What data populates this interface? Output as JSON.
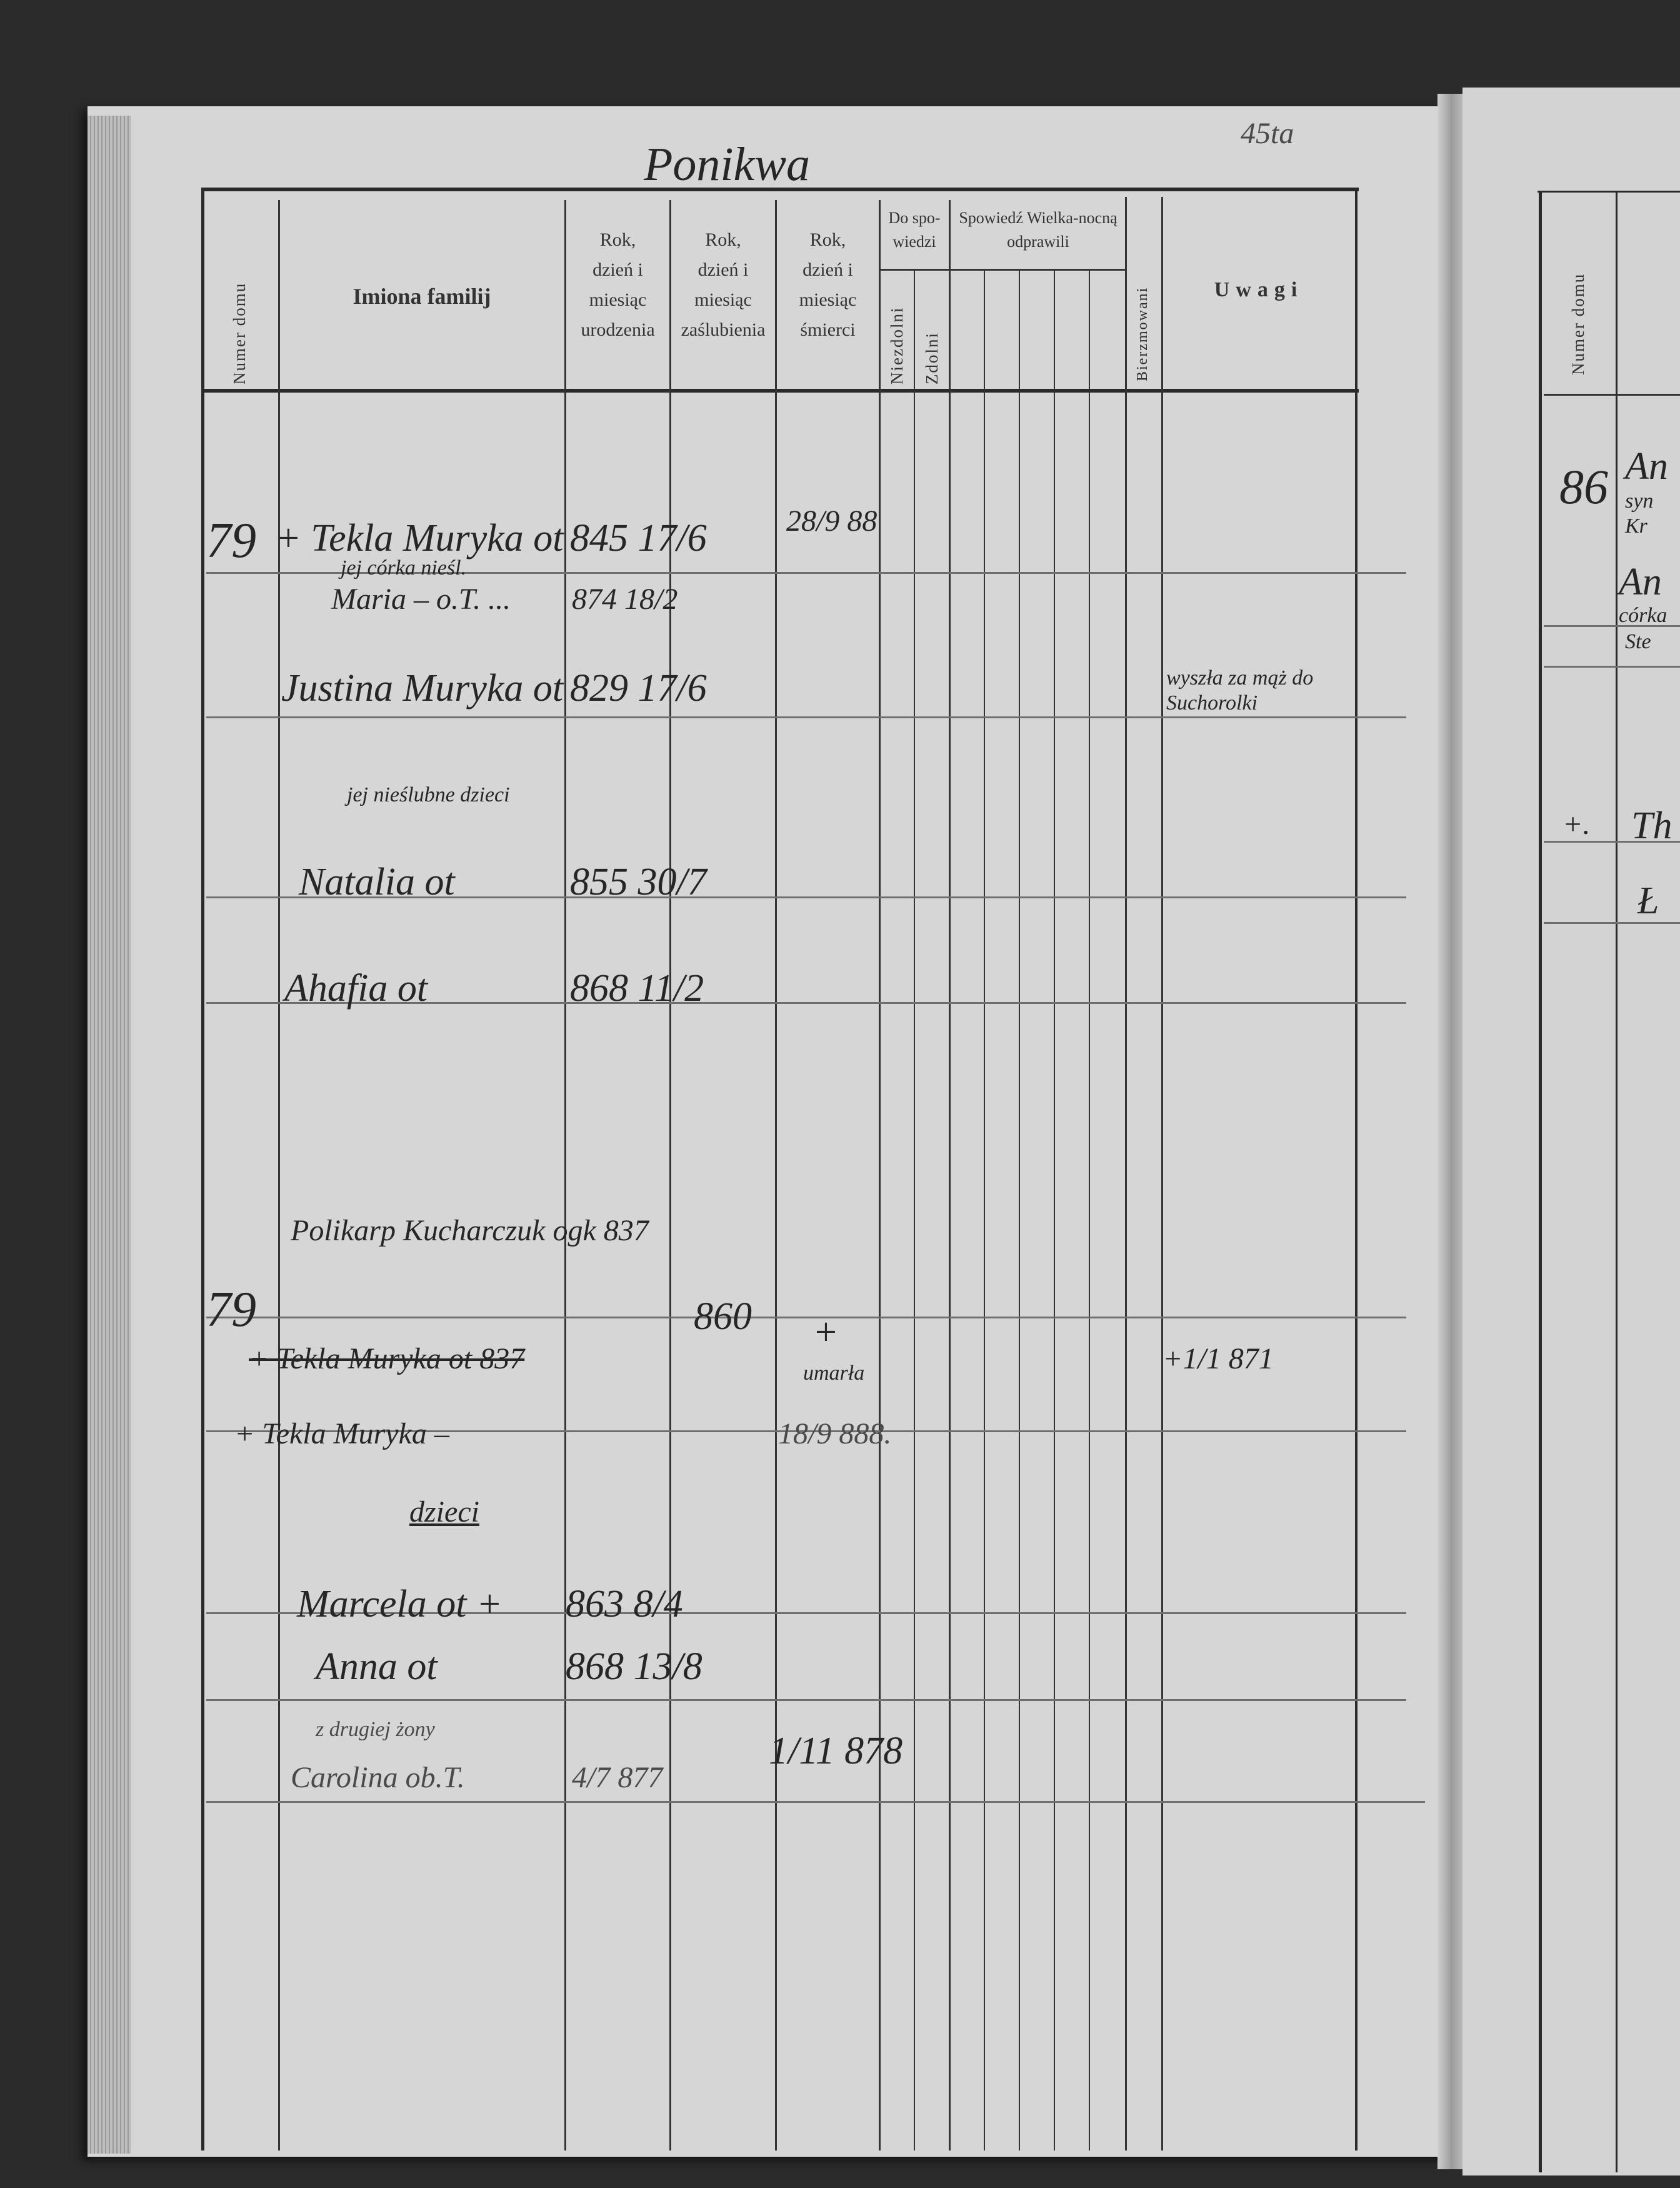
{
  "page": {
    "title": "Ponikwa",
    "page_number": "45ta"
  },
  "headers": {
    "house_number": "Numer domu",
    "family_names": "Imiona familij",
    "birth": [
      "Rok,",
      "dzień i",
      "miesiąc",
      "urodzenia"
    ],
    "marriage": [
      "Rok,",
      "dzień i",
      "miesiąc",
      "zaślubienia"
    ],
    "death": [
      "Rok,",
      "dzień i",
      "miesiąc",
      "śmierci"
    ],
    "to_confession": "Do spo-wiedzi",
    "not_able": "Niezdolni",
    "able": "Zdolni",
    "easter_confession": "Spowiedź Wielka-nocną odprawili",
    "confirmed": "Bierzmowani",
    "remarks": "Uwagi"
  },
  "entries": {
    "house_1": "79",
    "tekla_1": "+ Tekla Muryka ot",
    "tekla_1_birth": "845 17/6",
    "tekla_1_death": "28/9 88",
    "daughter_note": "jej córka nieśl.",
    "maria": "Maria – o.T. ...",
    "maria_birth": "874 18/2",
    "justina": "Justina Muryka ot",
    "justina_birth": "829 17/6",
    "justina_remark": "wyszła za mąż do Suchorolki",
    "children_note": "jej nieślubne dzieci",
    "natalia": "Natalia ot",
    "natalia_birth": "855 30/7",
    "ahafia": "Ahafia ot",
    "ahafia_birth": "868 11/2",
    "polikarp": "Polikarp Kucharczuk ogk 837",
    "house_2": "79",
    "tekla_2_struck": "+ Tekla Muryka ot 837",
    "marriage_year": "860",
    "died_cross": "+",
    "died_text": "umarła",
    "tekla_2_remark": "+1/1 871",
    "tekla_3": "+ Tekla Muryka –",
    "tekla_3_death": "18/9 888.",
    "children_label": "dzieci",
    "marcela": "Marcela ot +",
    "marcela_birth": "863 8/4",
    "anna": "Anna ot",
    "anna_birth": "868 13/8",
    "second_wife_note": "z drugiej żony",
    "carolina": "Carolina ob.T.",
    "carolina_birth": "4/7 877",
    "carolina_death": "1/11 878"
  },
  "right_page": {
    "house_number_header": "Numer domu",
    "house": "86",
    "row1_name": "An",
    "row1_sub1": "syn",
    "row1_sub2": "Kr",
    "row2_name": "An",
    "row2_sub1": "córka",
    "row2_sub2": "Ste",
    "row3_mark": "+.",
    "row3_name": "Th",
    "row4_name": "Ł"
  }
}
